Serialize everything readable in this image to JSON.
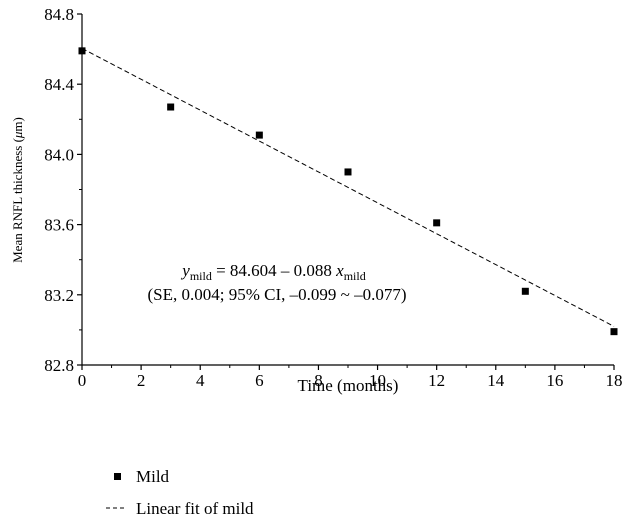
{
  "chart_data": {
    "type": "scatter",
    "title": "",
    "xlabel": "Time (months)",
    "ylabel_main": "Mean RNFL thickness (",
    "ylabel_unit": "μ",
    "ylabel_tail": "m)",
    "xlim": [
      0,
      18
    ],
    "ylim": [
      82.8,
      84.8
    ],
    "xticks": [
      "0",
      "2",
      "4",
      "6",
      "8",
      "10",
      "12",
      "14",
      "16",
      "18"
    ],
    "yticks": [
      "82.8",
      "83.2",
      "83.6",
      "84.0",
      "84.4",
      "84.8"
    ],
    "grid": false,
    "legend_position": "bottom",
    "series": [
      {
        "name": "Mild",
        "marker": "square",
        "color": "#000000",
        "x": [
          0,
          3,
          6,
          9,
          12,
          15,
          18
        ],
        "y": [
          84.59,
          84.27,
          84.11,
          83.9,
          83.61,
          83.22,
          82.99
        ]
      }
    ],
    "fit": {
      "name": "Linear fit of mild",
      "style": "dashed",
      "intercept": 84.604,
      "slope": -0.088,
      "x_range": [
        0,
        18
      ]
    },
    "annotation": {
      "eq_y": "y",
      "eq_y_sub": "mild",
      "eq_middle": " = 84.604 – 0.088 ",
      "eq_x": "x",
      "eq_x_sub": "mild",
      "ci_line": "(SE, 0.004; 95% CI, –0.099 ~ –0.077)"
    }
  }
}
